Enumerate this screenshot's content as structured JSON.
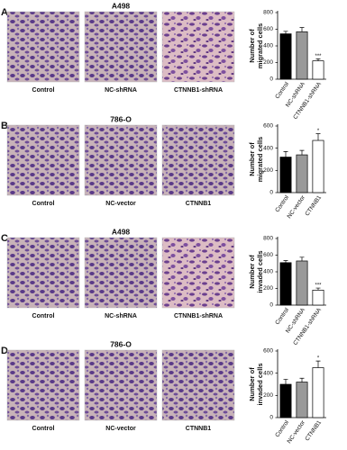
{
  "chart_data": [
    {
      "type": "bar",
      "panel_label": "A",
      "title": "A498",
      "image_labels": [
        "Control",
        "NC-shRNA",
        "CTNNB1-shRNA"
      ],
      "y_label": [
        "Number of",
        "migrated cells"
      ],
      "categories": [
        "Control",
        "NC-shRNA",
        "CTNNB1-shRNA"
      ],
      "values": [
        545,
        570,
        220
      ],
      "errors": [
        30,
        50,
        25
      ],
      "colors": [
        "#000000",
        "#999999",
        "#ffffff"
      ],
      "significance": [
        null,
        null,
        "***"
      ],
      "ylim": [
        0,
        800
      ],
      "yticks": [
        0,
        200,
        400,
        600,
        800
      ]
    },
    {
      "type": "bar",
      "panel_label": "B",
      "title": "786-O",
      "image_labels": [
        "Control",
        "NC-vector",
        "CTNNB1"
      ],
      "y_label": [
        "Number of",
        "migrated cells"
      ],
      "categories": [
        "Control",
        "NC-vector",
        "CTNNB1"
      ],
      "values": [
        320,
        340,
        470
      ],
      "errors": [
        50,
        40,
        60
      ],
      "colors": [
        "#000000",
        "#999999",
        "#ffffff"
      ],
      "significance": [
        null,
        null,
        "*"
      ],
      "ylim": [
        0,
        600
      ],
      "yticks": [
        0,
        200,
        400,
        600
      ]
    },
    {
      "type": "bar",
      "panel_label": "C",
      "title": "A498",
      "image_labels": [
        "Control",
        "NC-shRNA",
        "CTNNB1-shRNA"
      ],
      "y_label": [
        "Number of",
        "invaded cells"
      ],
      "categories": [
        "Control",
        "NC-shRNA",
        "CTNNB1-shRNA"
      ],
      "values": [
        510,
        530,
        180
      ],
      "errors": [
        25,
        45,
        25
      ],
      "colors": [
        "#000000",
        "#999999",
        "#ffffff"
      ],
      "significance": [
        null,
        null,
        "***"
      ],
      "ylim": [
        0,
        800
      ],
      "yticks": [
        0,
        200,
        400,
        600,
        800
      ]
    },
    {
      "type": "bar",
      "panel_label": "D",
      "title": "786-O",
      "image_labels": [
        "Control",
        "NC-vector",
        "CTNNB1"
      ],
      "y_label": [
        "Number of",
        "invaded cells"
      ],
      "categories": [
        "Control",
        "NC-vector",
        "CTNNB1"
      ],
      "values": [
        300,
        320,
        450
      ],
      "errors": [
        45,
        35,
        60
      ],
      "colors": [
        "#000000",
        "#999999",
        "#ffffff"
      ],
      "significance": [
        null,
        null,
        "*"
      ],
      "ylim": [
        0,
        600
      ],
      "yticks": [
        0,
        200,
        400,
        600
      ]
    }
  ]
}
